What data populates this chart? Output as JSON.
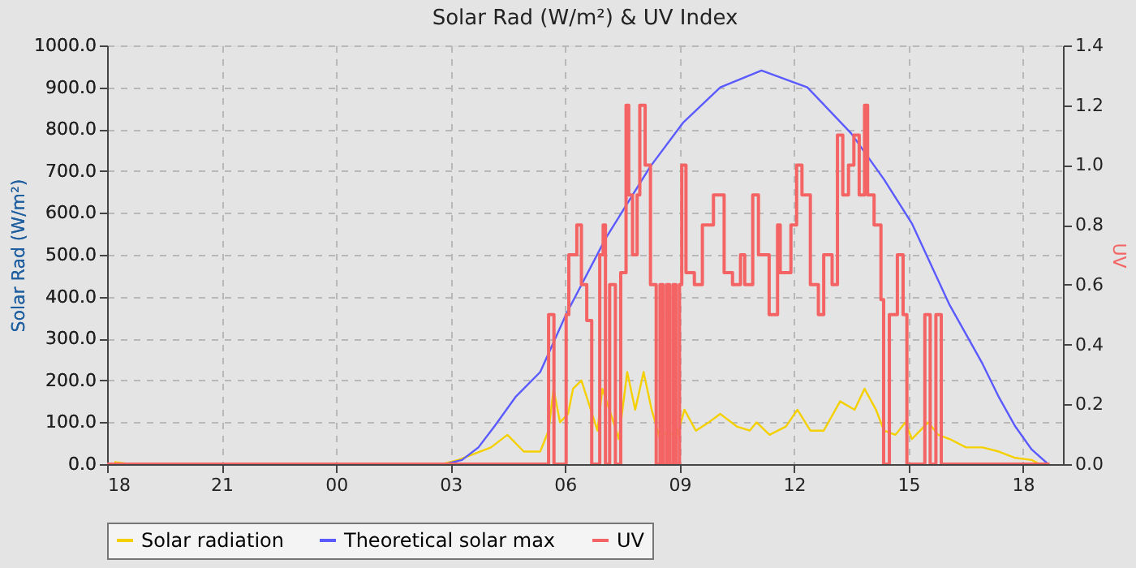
{
  "chart_data": {
    "type": "line",
    "title": "Solar Rad (W/m²) &  UV Index",
    "ylabel": "Solar Rad (W/m²)",
    "y2label": "UV",
    "xlim": [
      18,
      43.05
    ],
    "xticks": [
      {
        "value": 18,
        "label": "18"
      },
      {
        "value": 21,
        "label": "21"
      },
      {
        "value": 24,
        "label": "00"
      },
      {
        "value": 27,
        "label": "03"
      },
      {
        "value": 30,
        "label": "06"
      },
      {
        "value": 33,
        "label": "09"
      },
      {
        "value": 36,
        "label": "12"
      },
      {
        "value": 39,
        "label": "15"
      },
      {
        "value": 42,
        "label": "18"
      }
    ],
    "ylim": [
      0,
      1000
    ],
    "yticks": [
      {
        "value": 0,
        "label": "0.0"
      },
      {
        "value": 100,
        "label": "100.0"
      },
      {
        "value": 200,
        "label": "200.0"
      },
      {
        "value": 300,
        "label": "300.0"
      },
      {
        "value": 400,
        "label": "400.0"
      },
      {
        "value": 500,
        "label": "500.0"
      },
      {
        "value": 600,
        "label": "600.0"
      },
      {
        "value": 700,
        "label": "700.0"
      },
      {
        "value": 800,
        "label": "800.0"
      },
      {
        "value": 900,
        "label": "900.0"
      },
      {
        "value": 1000,
        "label": "1000.0"
      }
    ],
    "y2lim": [
      0,
      1.4
    ],
    "y2ticks": [
      {
        "value": 0,
        "label": "0.0"
      },
      {
        "value": 0.2,
        "label": "0.2"
      },
      {
        "value": 0.4,
        "label": "0.4"
      },
      {
        "value": 0.6,
        "label": "0.6"
      },
      {
        "value": 0.8,
        "label": "0.8"
      },
      {
        "value": 1,
        "label": "1.0"
      },
      {
        "value": 1.2,
        "label": "1.2"
      },
      {
        "value": 1.4,
        "label": "1.4"
      }
    ],
    "grid": true,
    "legend": "bottom",
    "marker": "none",
    "line_style": "solid",
    "series": [
      {
        "name": "Solar radiation",
        "color": "#f5d000",
        "x": [
          18.19,
          18.62,
          26.78,
          27.2,
          28.06,
          28.49,
          28.92,
          29.35,
          29.57,
          29.7,
          29.87,
          30.08,
          30.21,
          30.43,
          30.64,
          30.85,
          30.98,
          31.2,
          31.41,
          31.63,
          31.84,
          32.06,
          32.27,
          32.49,
          32.7,
          32.91,
          33.13,
          33.43,
          33.77,
          34.07,
          34.5,
          34.84,
          35.02,
          35.36,
          35.79,
          36.09,
          36.43,
          36.78,
          37.21,
          37.59,
          37.85,
          38.15,
          38.36,
          38.66,
          38.92,
          39.09,
          39.52,
          39.78,
          40.08,
          40.51,
          40.94,
          41.37,
          41.8,
          42.23,
          42.44
        ],
        "values": [
          5,
          0,
          0,
          10,
          40,
          70,
          30,
          30,
          80,
          180,
          100,
          120,
          180,
          200,
          140,
          80,
          180,
          120,
          60,
          220,
          130,
          220,
          130,
          60,
          80,
          60,
          130,
          80,
          100,
          120,
          90,
          80,
          100,
          70,
          90,
          130,
          80,
          80,
          150,
          130,
          180,
          130,
          80,
          70,
          100,
          60,
          100,
          70,
          60,
          40,
          40,
          30,
          15,
          10,
          0
        ]
      },
      {
        "name": "Theoretical solar max",
        "color": "#5a5aff",
        "x": [
          26.86,
          27.3,
          27.73,
          28.15,
          28.7,
          29.35,
          30.04,
          31.07,
          32.23,
          33.09,
          34.07,
          35.15,
          36.35,
          37.5,
          38.36,
          39.09,
          40.08,
          40.94,
          41.37,
          41.8,
          42.23,
          42.66
        ],
        "values": [
          0,
          10,
          40,
          90,
          160,
          220,
          360,
          540,
          710,
          815,
          900,
          940,
          900,
          790,
          680,
          575,
          380,
          240,
          160,
          90,
          35,
          0
        ]
      },
      {
        "name": "UV",
        "type": "step",
        "axis": "y2",
        "color": "#f46464",
        "x": [
          18.0,
          29.57,
          29.71,
          30.03,
          30.1,
          30.31,
          30.43,
          30.57,
          30.7,
          30.91,
          31.0,
          31.06,
          31.17,
          31.32,
          31.46,
          31.6,
          31.67,
          31.77,
          31.89,
          31.96,
          32.1,
          32.24,
          32.39,
          32.49,
          32.57,
          32.66,
          32.74,
          32.83,
          32.91,
          33.0,
          33.06,
          33.17,
          33.39,
          33.6,
          33.89,
          34.17,
          34.39,
          34.6,
          34.71,
          34.92,
          35.07,
          35.35,
          35.57,
          35.64,
          35.92,
          36.07,
          36.21,
          36.43,
          36.64,
          36.78,
          37.0,
          37.14,
          37.28,
          37.43,
          37.57,
          37.71,
          37.85,
          37.93,
          38.1,
          38.28,
          38.35,
          38.5,
          38.71,
          38.86,
          38.96,
          39.43,
          39.57,
          39.72,
          39.86,
          42.7
        ],
        "values": [
          0,
          0.5,
          0,
          0.5,
          0.7,
          0.8,
          0.6,
          0.48,
          0,
          0.7,
          0.8,
          0,
          0.6,
          0,
          0.64,
          1.2,
          0.9,
          0.7,
          0.9,
          1.2,
          1.0,
          0.6,
          0,
          0.6,
          0,
          0.6,
          0,
          0.6,
          0,
          0.6,
          1.0,
          0.64,
          0.6,
          0.8,
          0.9,
          0.64,
          0.6,
          0.7,
          0.6,
          0.9,
          0.7,
          0.5,
          0.8,
          0.64,
          0.8,
          1.0,
          0.9,
          0.6,
          0.5,
          0.7,
          0.6,
          1.1,
          0.9,
          1.0,
          1.1,
          0.9,
          1.2,
          0.9,
          0.8,
          0.55,
          0,
          0.5,
          0.7,
          0.5,
          0,
          0.5,
          0,
          0.5,
          0,
          0
        ]
      }
    ]
  }
}
